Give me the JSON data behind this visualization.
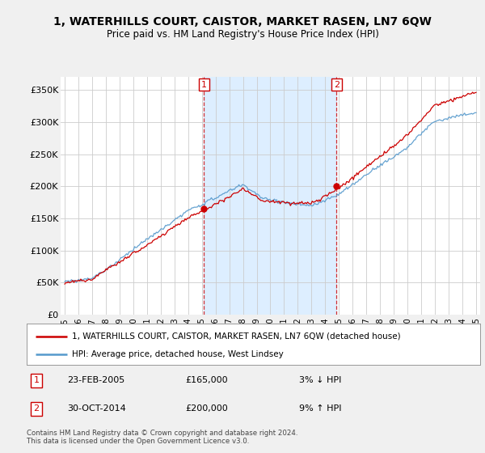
{
  "title": "1, WATERHILLS COURT, CAISTOR, MARKET RASEN, LN7 6QW",
  "subtitle": "Price paid vs. HM Land Registry's House Price Index (HPI)",
  "legend_line1": "1, WATERHILLS COURT, CAISTOR, MARKET RASEN, LN7 6QW (detached house)",
  "legend_line2": "HPI: Average price, detached house, West Lindsey",
  "annotation1_date": "23-FEB-2005",
  "annotation1_price": "£165,000",
  "annotation1_hpi": "3% ↓ HPI",
  "annotation2_date": "30-OCT-2014",
  "annotation2_price": "£200,000",
  "annotation2_hpi": "9% ↑ HPI",
  "footer": "Contains HM Land Registry data © Crown copyright and database right 2024.\nThis data is licensed under the Open Government Licence v3.0.",
  "sale1_year": 2005.15,
  "sale1_value": 165000,
  "sale2_year": 2014.83,
  "sale2_value": 200000,
  "property_color": "#cc0000",
  "hpi_color": "#5599cc",
  "shade_color": "#ddeeff",
  "background_color": "#f0f0f0",
  "plot_background": "#ffffff",
  "ylim": [
    0,
    370000
  ],
  "yticks": [
    0,
    50000,
    100000,
    150000,
    200000,
    250000,
    300000,
    350000
  ],
  "ytick_labels": [
    "£0",
    "£50K",
    "£100K",
    "£150K",
    "£200K",
    "£250K",
    "£300K",
    "£350K"
  ],
  "xlim_start": 1994.7,
  "xlim_end": 2025.3
}
